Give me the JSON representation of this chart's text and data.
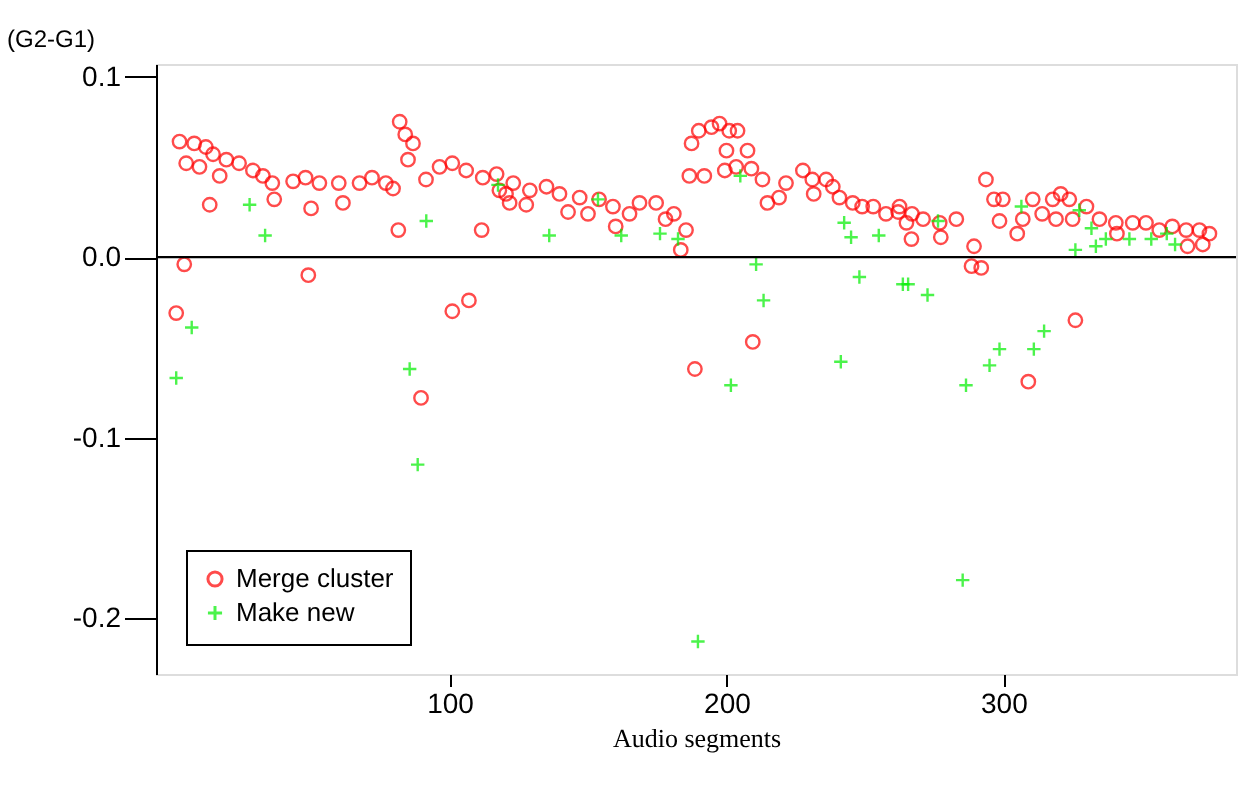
{
  "chart_data": {
    "type": "scatter",
    "xlabel": "Audio segments",
    "ylabel": "(G2-G1)",
    "xlim": [
      -6,
      384
    ],
    "ylim": [
      -0.231,
      0.107
    ],
    "xticks": [
      100,
      200,
      300
    ],
    "yticks": [
      {
        "value": 0.1,
        "label": "0.1"
      },
      {
        "value": 0,
        "label": "0.0"
      },
      {
        "value": -0.1,
        "label": "-0.1"
      },
      {
        "value": -0.2,
        "label": "-0.2"
      }
    ],
    "grid": false,
    "legend": "bottom left",
    "ref_lines": [
      {
        "axis": "y",
        "value": 0,
        "color": "#000000"
      }
    ],
    "series": [
      {
        "name": "Merge cluster",
        "color": "#ff0000",
        "marker": "circle",
        "x": [
          2.5,
          7.8,
          4.9,
          12,
          14.6,
          9.7,
          19.4,
          24,
          17,
          29,
          32.6,
          36,
          43.5,
          48,
          53,
          60,
          67.5,
          72,
          77,
          79.6,
          13.4,
          36.7,
          50,
          61.5,
          82,
          84,
          86.8,
          85,
          81.5,
          91.5,
          96.4,
          101,
          106,
          112,
          111.6,
          117,
          120.4,
          123,
          4.2,
          1.3,
          49,
          101,
          107,
          89.7,
          118,
          129,
          135,
          139.7,
          147,
          154,
          159,
          165,
          168.6,
          174.6,
          178,
          181,
          185.4,
          183.5,
          121.7,
          127.7,
          142.8,
          150,
          160,
          186.6,
          192,
          187.4,
          190,
          194.6,
          197.5,
          201,
          204,
          200,
          207.6,
          199.4,
          203.5,
          209,
          213,
          214.8,
          219,
          221.5,
          227.6,
          231,
          231.5,
          236,
          238.4,
          240.8,
          245.6,
          249,
          253,
          257.6,
          262,
          209.5,
          188.6,
          262.5,
          267,
          271,
          277,
          283,
          266.8,
          277.4,
          265,
          289.4,
          288.5,
          292,
          293.7,
          296.6,
          299.8,
          298.6,
          305,
          307,
          310.6,
          314,
          317.8,
          320.7,
          323.8,
          319,
          325,
          330,
          334.7,
          340.6,
          341,
          346.7,
          351.5,
          356.3,
          361,
          366,
          370.8,
          374.4,
          366.5,
          372,
          326,
          309
        ],
        "values": [
          0.064,
          0.063,
          0.052,
          0.061,
          0.057,
          0.05,
          0.054,
          0.052,
          0.045,
          0.048,
          0.045,
          0.041,
          0.042,
          0.044,
          0.041,
          0.041,
          0.041,
          0.044,
          0.041,
          0.038,
          0.029,
          0.032,
          0.027,
          0.03,
          0.075,
          0.068,
          0.063,
          0.054,
          0.015,
          0.043,
          0.05,
          0.052,
          0.048,
          0.044,
          0.015,
          0.046,
          0.035,
          0.041,
          -0.004,
          -0.031,
          -0.01,
          -0.03,
          -0.024,
          -0.078,
          0.037,
          0.037,
          0.039,
          0.035,
          0.033,
          0.032,
          0.028,
          0.024,
          0.03,
          0.03,
          0.021,
          0.024,
          0.015,
          0.004,
          0.03,
          0.029,
          0.025,
          0.024,
          0.017,
          0.045,
          0.045,
          0.063,
          0.07,
          0.072,
          0.074,
          0.07,
          0.07,
          0.059,
          0.059,
          0.048,
          0.05,
          0.049,
          0.043,
          0.03,
          0.033,
          0.041,
          0.048,
          0.043,
          0.035,
          0.043,
          0.039,
          0.033,
          0.03,
          0.028,
          0.028,
          0.024,
          0.025,
          -0.047,
          -0.062,
          0.028,
          0.024,
          0.021,
          0.019,
          0.021,
          0.01,
          0.011,
          0.019,
          0.006,
          -0.005,
          -0.006,
          0.043,
          0.032,
          0.032,
          0.02,
          0.013,
          0.021,
          0.032,
          0.024,
          0.032,
          0.035,
          0.032,
          0.021,
          0.021,
          0.028,
          0.021,
          0.019,
          0.013,
          0.019,
          0.019,
          0.015,
          0.017,
          0.015,
          0.015,
          0.013,
          0.006,
          0.007,
          -0.035,
          -0.069
        ]
      },
      {
        "name": "Make new",
        "color": "#00ee00",
        "marker": "cross",
        "x": [
          27.8,
          33.4,
          6.9,
          1.3,
          91.6,
          85.6,
          88.5,
          117.5,
          136,
          153.6,
          162,
          176,
          182.5,
          205,
          210.7,
          213.4,
          201.6,
          189.7,
          242.5,
          245,
          255,
          248,
          241.3,
          276.4,
          263.7,
          265.6,
          272.6,
          286.5,
          295,
          298.6,
          311,
          314.7,
          285.3,
          306.5,
          326,
          327.4,
          331.8,
          333.4,
          337,
          345.5,
          353.4,
          359,
          362
        ],
        "values": [
          0.029,
          0.012,
          -0.039,
          -0.067,
          0.02,
          -0.062,
          -0.115,
          0.04,
          0.012,
          0.032,
          0.012,
          0.013,
          0.01,
          0.045,
          -0.004,
          -0.024,
          -0.071,
          -0.213,
          0.019,
          0.011,
          0.012,
          -0.011,
          -0.058,
          0.02,
          -0.015,
          -0.015,
          -0.021,
          -0.071,
          -0.06,
          -0.051,
          -0.051,
          -0.041,
          -0.179,
          0.028,
          0.004,
          0.026,
          0.016,
          0.006,
          0.01,
          0.01,
          0.01,
          0.013,
          0.007
        ]
      }
    ]
  }
}
